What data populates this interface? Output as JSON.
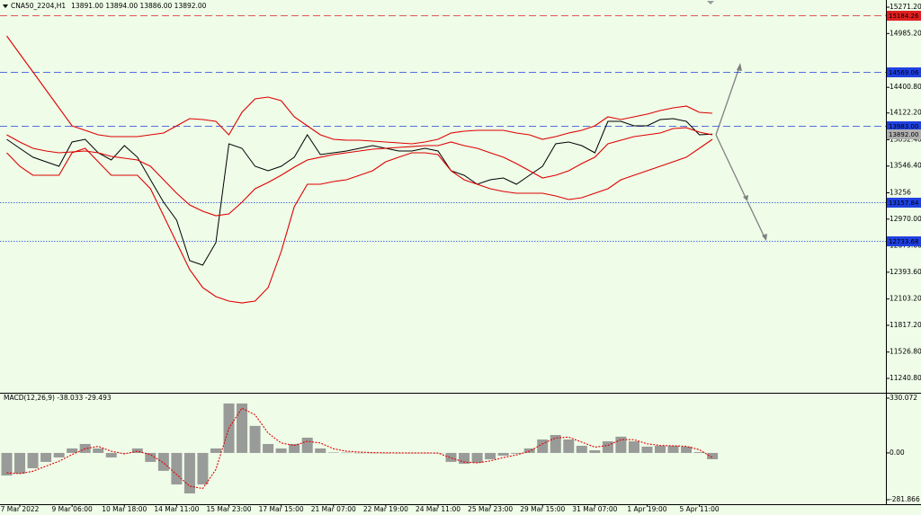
{
  "chart_data": [
    {
      "type": "line",
      "title": "CNA50_2204,H1",
      "quote": "13891.00 13894.00 13886.00 13892.00",
      "categories": [
        null,
        "7 Mar 2022",
        null,
        null,
        null,
        "9 Mar 06:00",
        null,
        null,
        null,
        "10 Mar 18:00",
        null,
        null,
        null,
        "14 Mar 11:00",
        null,
        null,
        null,
        "15 Mar 23:00",
        null,
        null,
        null,
        "17 Mar 15:00",
        null,
        null,
        null,
        "21 Mar 07:00",
        null,
        null,
        null,
        "22 Mar 19:00",
        null,
        null,
        null,
        "24 Mar 11:00",
        null,
        null,
        null,
        "25 Mar 23:00",
        null,
        null,
        null,
        "29 Mar 15:00",
        null,
        null,
        null,
        "31 Mar 07:00",
        null,
        null,
        null,
        "1 Apr 19:00",
        null,
        null,
        null,
        "5 Apr 11:00",
        null
      ],
      "series": [
        {
          "color": "#000000",
          "values": [
            13837,
            13739,
            13642,
            13593,
            13544,
            13807,
            13837,
            13690,
            13612,
            13768,
            13642,
            13398,
            13154,
            12958,
            12519,
            12470,
            12714,
            13788,
            13739,
            13544,
            13495,
            13544,
            13642,
            13885,
            13671,
            13690,
            13710,
            13739,
            13768,
            13739,
            13710,
            13710,
            13739,
            13710,
            13495,
            13446,
            13349,
            13398,
            13417,
            13349,
            13446,
            13544,
            13788,
            13807,
            13768,
            13690,
            14032,
            14032,
            13983,
            13983,
            14051,
            14061,
            14032,
            13885,
            13892
          ]
        },
        {
          "color": "#e00000",
          "values": [
            14959,
            14764,
            14569,
            14373,
            14178,
            13983,
            13934,
            13885,
            13866,
            13866,
            13866,
            13885,
            13905,
            13983,
            14061,
            14051,
            14032,
            13885,
            14129,
            14276,
            14295,
            14256,
            14081,
            13983,
            13885,
            13837,
            13827,
            13827,
            13817,
            13807,
            13798,
            13788,
            13807,
            13837,
            13905,
            13925,
            13934,
            13934,
            13934,
            13905,
            13885,
            13837,
            13866,
            13905,
            13934,
            13983,
            14081,
            14051,
            14081,
            14110,
            14149,
            14178,
            14198,
            14129,
            14120
          ]
        },
        {
          "color": "#e00000",
          "values": [
            13885,
            13807,
            13739,
            13710,
            13690,
            13700,
            13710,
            13690,
            13651,
            13632,
            13612,
            13544,
            13398,
            13251,
            13124,
            13056,
            13007,
            13027,
            13154,
            13300,
            13368,
            13446,
            13534,
            13612,
            13642,
            13671,
            13690,
            13710,
            13729,
            13739,
            13749,
            13758,
            13768,
            13768,
            13807,
            13768,
            13739,
            13690,
            13642,
            13573,
            13495,
            13417,
            13446,
            13495,
            13573,
            13642,
            13788,
            13827,
            13866,
            13885,
            13905,
            13954,
            13963,
            13915,
            13885
          ]
        },
        {
          "color": "#e00000",
          "values": [
            13690,
            13544,
            13446,
            13446,
            13446,
            13690,
            13739,
            13593,
            13446,
            13446,
            13446,
            13300,
            13007,
            12714,
            12422,
            12226,
            12129,
            12080,
            12060,
            12080,
            12226,
            12617,
            13105,
            13349,
            13349,
            13378,
            13398,
            13446,
            13495,
            13593,
            13642,
            13690,
            13690,
            13671,
            13495,
            13398,
            13349,
            13300,
            13271,
            13251,
            13251,
            13251,
            13222,
            13183,
            13202,
            13251,
            13300,
            13398,
            13446,
            13495,
            13544,
            13593,
            13642,
            13739,
            13837
          ]
        }
      ],
      "ylim": [
        11084.7,
        15349.3
      ],
      "yticks": [
        {
          "value": 15271.2,
          "label": "15271.20"
        },
        {
          "value": 14985.2,
          "label": "14985.20"
        },
        {
          "value": 14400.8,
          "label": "14400.80"
        },
        {
          "value": 14122.2,
          "label": "14122.20"
        },
        {
          "value": 13832.4,
          "label": "13832.40"
        },
        {
          "value": 13546.4,
          "label": "13546.40"
        },
        13256,
        {
          "value": 12970,
          "label": "12970.00"
        },
        {
          "value": 12679.6,
          "label": "12679.60"
        },
        {
          "value": 12393.6,
          "label": "12393.60"
        },
        {
          "value": 12103.2,
          "label": "12103.20"
        },
        {
          "value": 11817.2,
          "label": "11817.20"
        },
        {
          "value": 11526.8,
          "label": "11526.80"
        },
        {
          "value": 11240.8,
          "label": "11240.80"
        }
      ],
      "levels": [
        {
          "value": 15184.26,
          "label": "15184.26",
          "color": "#e02020",
          "style": "dashed"
        },
        {
          "value": 14569.06,
          "label": "14569.06",
          "color": "#2040e0",
          "style": "dashed"
        },
        {
          "value": 13983,
          "label": "13983.00",
          "color": "#2040e0",
          "style": "dashed"
        },
        {
          "value": 13892,
          "label": "13892.00",
          "color": "#b0b0b0",
          "style": "none"
        },
        {
          "value": 13157.84,
          "label": "13157.84",
          "color": "#2040e0",
          "style": "dotted"
        },
        {
          "value": 12733.68,
          "label": "12733.68",
          "color": "#2040e0",
          "style": "dotted"
        }
      ]
    },
    {
      "type": "bar",
      "title": "MACD(12,26,9) -38.033 -29.493",
      "series": [
        {
          "type": "bar",
          "color": "#8a8a8a",
          "values": [
            -136,
            -125,
            -92,
            -54,
            -27,
            27,
            54,
            27,
            -27,
            0,
            27,
            -54,
            -108,
            -190,
            -244,
            -190,
            27,
            298,
            298,
            163,
            54,
            27,
            54,
            92,
            27,
            3,
            2,
            1,
            1,
            0,
            0,
            0,
            0,
            -2,
            -54,
            -65,
            -60,
            -38,
            -16,
            -5,
            27,
            81,
            108,
            81,
            43,
            16,
            70,
            98,
            70,
            38,
            43,
            43,
            38,
            5,
            -38
          ]
        },
        {
          "type": "line",
          "color": "#e00000",
          "values": [
            -120,
            -125,
            -110,
            -80,
            -50,
            -10,
            25,
            40,
            10,
            -5,
            10,
            -10,
            -60,
            -130,
            -200,
            -215,
            -100,
            150,
            270,
            230,
            120,
            60,
            45,
            70,
            60,
            25,
            10,
            5,
            2,
            1,
            0,
            0,
            0,
            -1,
            -30,
            -55,
            -60,
            -48,
            -28,
            -12,
            10,
            55,
            90,
            95,
            65,
            35,
            45,
            80,
            80,
            55,
            45,
            43,
            40,
            20,
            -29
          ]
        }
      ],
      "ylim": [
        -309,
        362.6
      ],
      "yticks": [
        330.072,
        {
          "value": 0,
          "label": "0.00"
        },
        -281.866
      ]
    }
  ]
}
